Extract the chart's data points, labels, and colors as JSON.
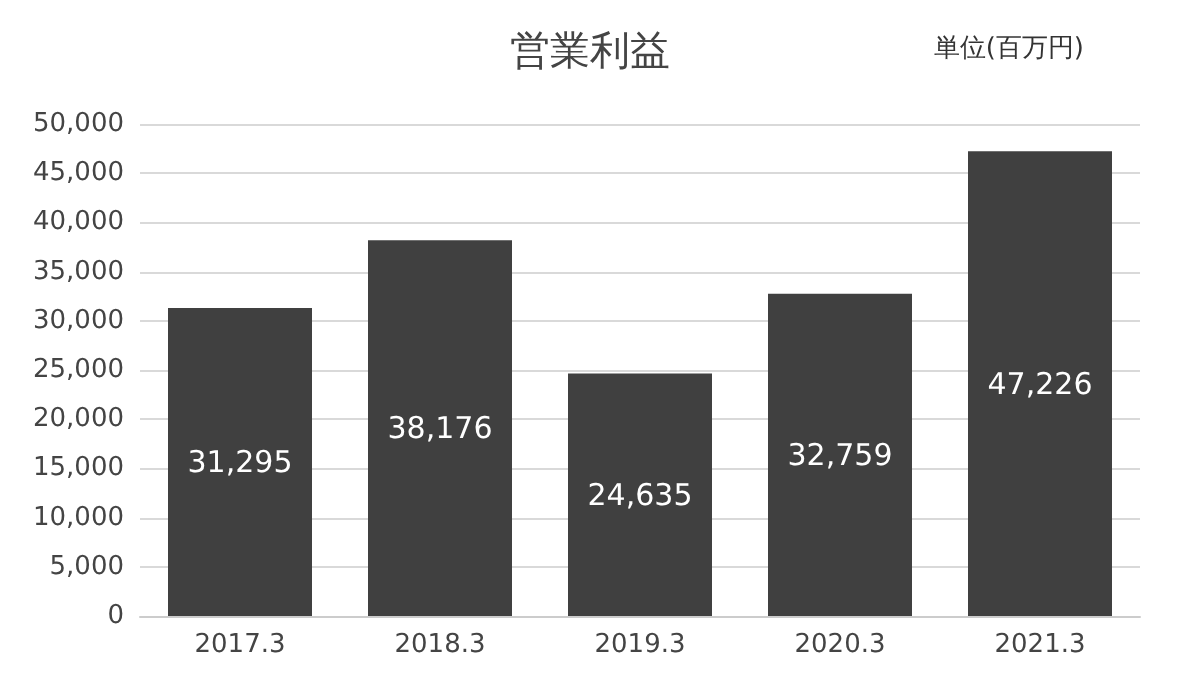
{
  "chart_data": {
    "type": "bar",
    "title": "営業利益",
    "annotations": [
      "単位(百万円)"
    ],
    "categories": [
      "2017.3",
      "2018.3",
      "2019.3",
      "2020.3",
      "2021.3"
    ],
    "values": [
      31295,
      38176,
      24635,
      32759,
      47226
    ],
    "color": "#404040",
    "value_labels": [
      "31,295",
      "38,176",
      "24,635",
      "32,759",
      "47,226"
    ],
    "ylim": [
      0,
      50000
    ],
    "yticks": [
      0,
      {
        "value": 5000,
        "label": "5,000"
      },
      {
        "value": 10000,
        "label": "10,000"
      },
      {
        "value": 15000,
        "label": "15,000"
      },
      {
        "value": 20000,
        "label": "20,000"
      },
      {
        "value": 25000,
        "label": "25,000"
      },
      {
        "value": 30000,
        "label": "30,000"
      },
      {
        "value": 35000,
        "label": "35,000"
      },
      {
        "value": 40000,
        "label": "40,000"
      },
      {
        "value": 45000,
        "label": "45,000"
      },
      {
        "value": 50000,
        "label": "50,000"
      }
    ],
    "grid": "y"
  }
}
